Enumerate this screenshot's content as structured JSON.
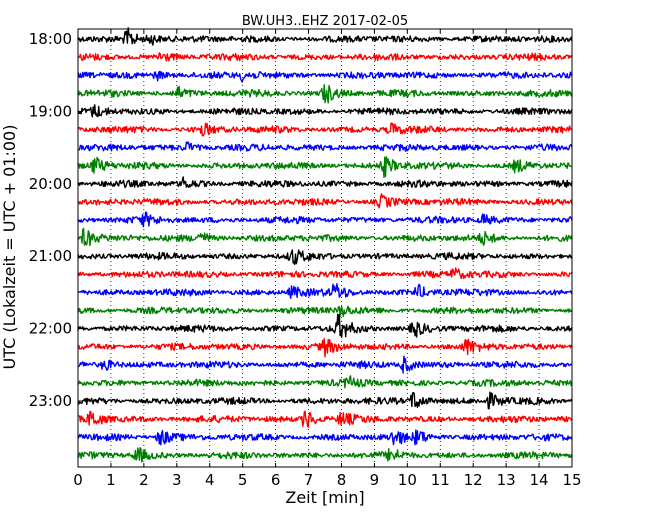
{
  "chart_data": {
    "type": "line",
    "title": "BW.UH3..EHZ 2017-02-05",
    "xlabel": "Zeit  [min]",
    "ylabel": "UTC (Lokalzeit = UTC + 01:00)",
    "xlim": [
      0,
      15
    ],
    "x_ticks": [
      0,
      1,
      2,
      3,
      4,
      5,
      6,
      7,
      8,
      9,
      10,
      11,
      12,
      13,
      14,
      15
    ],
    "y_tick_labels": [
      "18:00",
      "19:00",
      "20:00",
      "21:00",
      "22:00",
      "23:00"
    ],
    "trace_minutes": 15,
    "grid": "vertical dotted",
    "color_cycle": [
      "#000000",
      "#ff0000",
      "#0000ff",
      "#008000"
    ],
    "traces": [
      {
        "start": "18:00",
        "events": [
          {
            "t": 1.5,
            "amp": 1.6
          },
          {
            "t": 2.2,
            "amp": 0.9
          }
        ]
      },
      {
        "start": "18:15",
        "events": [
          {
            "t": 2.5,
            "amp": 0.8
          }
        ]
      },
      {
        "start": "18:30",
        "events": [
          {
            "t": 2.4,
            "amp": 0.7
          },
          {
            "t": 5.0,
            "amp": 0.8
          }
        ]
      },
      {
        "start": "18:45",
        "events": [
          {
            "t": 3.0,
            "amp": 1.0
          },
          {
            "t": 7.5,
            "amp": 1.7
          }
        ]
      },
      {
        "start": "19:00",
        "events": [
          {
            "t": 0.5,
            "amp": 0.8
          }
        ]
      },
      {
        "start": "19:15",
        "events": [
          {
            "t": 3.8,
            "amp": 1.0
          },
          {
            "t": 9.5,
            "amp": 0.9
          }
        ]
      },
      {
        "start": "19:30",
        "events": [
          {
            "t": 3.3,
            "amp": 0.8
          }
        ]
      },
      {
        "start": "19:45",
        "events": [
          {
            "t": 0.5,
            "amp": 1.4
          },
          {
            "t": 9.3,
            "amp": 1.6
          },
          {
            "t": 13.3,
            "amp": 1.0
          }
        ]
      },
      {
        "start": "20:00",
        "events": [
          {
            "t": 3.2,
            "amp": 0.8
          }
        ]
      },
      {
        "start": "20:15",
        "events": [
          {
            "t": 9.2,
            "amp": 1.0
          }
        ]
      },
      {
        "start": "20:30",
        "events": [
          {
            "t": 2.0,
            "amp": 0.9
          },
          {
            "t": 12.3,
            "amp": 0.8
          }
        ]
      },
      {
        "start": "20:45",
        "events": [
          {
            "t": 0.2,
            "amp": 1.8
          },
          {
            "t": 3.7,
            "amp": 1.0
          },
          {
            "t": 12.3,
            "amp": 0.9
          }
        ]
      },
      {
        "start": "21:00",
        "events": [
          {
            "t": 6.5,
            "amp": 1.2
          }
        ]
      },
      {
        "start": "21:15",
        "events": [
          {
            "t": 11.4,
            "amp": 0.9
          }
        ]
      },
      {
        "start": "21:30",
        "events": [
          {
            "t": 6.5,
            "amp": 1.0
          },
          {
            "t": 7.8,
            "amp": 1.3
          },
          {
            "t": 10.3,
            "amp": 1.2
          }
        ]
      },
      {
        "start": "21:45",
        "events": [
          {
            "t": 8.0,
            "amp": 0.9
          }
        ]
      },
      {
        "start": "22:00",
        "events": [
          {
            "t": 7.9,
            "amp": 2.0
          },
          {
            "t": 10.2,
            "amp": 1.4
          }
        ]
      },
      {
        "start": "22:15",
        "events": [
          {
            "t": 7.5,
            "amp": 1.2
          },
          {
            "t": 11.8,
            "amp": 1.1
          }
        ]
      },
      {
        "start": "22:30",
        "events": [
          {
            "t": 0.8,
            "amp": 1.0
          },
          {
            "t": 9.9,
            "amp": 1.4
          }
        ]
      },
      {
        "start": "22:45",
        "events": [
          {
            "t": 8.2,
            "amp": 0.8
          }
        ]
      },
      {
        "start": "23:00",
        "events": [
          {
            "t": 10.2,
            "amp": 1.7
          },
          {
            "t": 12.5,
            "amp": 1.2
          }
        ]
      },
      {
        "start": "23:15",
        "events": [
          {
            "t": 0.4,
            "amp": 1.5
          },
          {
            "t": 6.9,
            "amp": 1.8
          },
          {
            "t": 8.0,
            "amp": 1.1
          }
        ]
      },
      {
        "start": "23:30",
        "events": [
          {
            "t": 2.5,
            "amp": 1.5
          },
          {
            "t": 9.6,
            "amp": 1.2
          },
          {
            "t": 10.3,
            "amp": 1.2
          }
        ]
      },
      {
        "start": "23:45",
        "events": [
          {
            "t": 1.8,
            "amp": 1.3
          },
          {
            "t": 9.5,
            "amp": 1.0
          }
        ]
      }
    ]
  }
}
